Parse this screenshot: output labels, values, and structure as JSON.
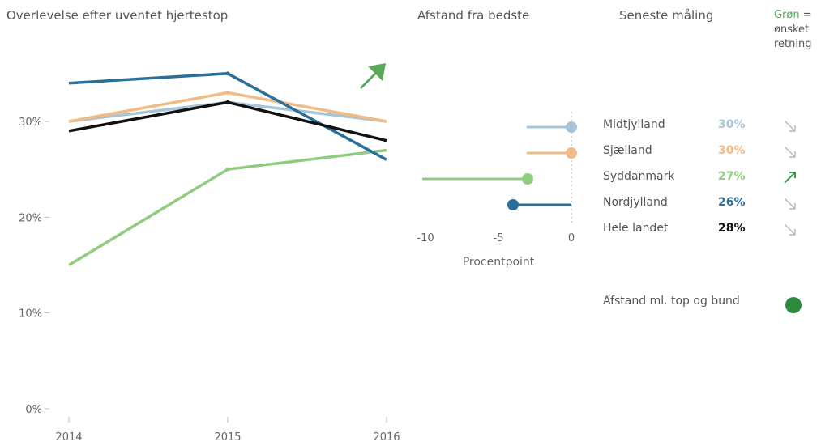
{
  "headers": {
    "left_title": "Overlevelse efter uventet hjertestop",
    "middle_title": "Afstand fra bedste",
    "right_title": "Seneste måling",
    "direction_word": "Grøn",
    "direction_rest": "=",
    "direction_line2": "ønsket",
    "direction_line3": "retning"
  },
  "footer": {
    "spread_label": "Afstand ml. top og bund",
    "spread_color": "#2e8b3e"
  },
  "trend_icon": "up-right-arrow",
  "trend_color": "#5ba85b",
  "chart_data": [
    {
      "type": "line",
      "title": "Overlevelse efter uventet hjertestop",
      "x": [
        "2014",
        "2015",
        "2016"
      ],
      "y_ticks": [
        "0%",
        "10%",
        "20%",
        "30%"
      ],
      "ylim": [
        0,
        40
      ],
      "grid": false,
      "series": [
        {
          "name": "Midtjylland",
          "color": "#a8c4d8",
          "values": [
            30,
            32,
            30
          ]
        },
        {
          "name": "Sjælland",
          "color": "#f3bb84",
          "values": [
            30,
            33,
            30
          ]
        },
        {
          "name": "Syddanmark",
          "color": "#8fcc80",
          "values": [
            15,
            25,
            27
          ]
        },
        {
          "name": "Nordjylland",
          "color": "#2a6f9a",
          "values": [
            34,
            35,
            26
          ]
        },
        {
          "name": "Hele landet",
          "color": "#111111",
          "values": [
            29,
            32,
            28
          ]
        }
      ]
    },
    {
      "type": "dot",
      "title": "Afstand fra bedste",
      "xlabel": "Procentpoint",
      "x_ticks": [
        -10,
        -5,
        0
      ],
      "xlim": [
        -10,
        0
      ],
      "series": [
        {
          "name": "Midtjylland",
          "color": "#a8c4d8",
          "value": 0
        },
        {
          "name": "Sjælland",
          "color": "#f3bb84",
          "value": 0
        },
        {
          "name": "Syddanmark",
          "color": "#8fcc80",
          "value": -3
        },
        {
          "name": "Nordjylland",
          "color": "#2a6f9a",
          "value": -4
        },
        {
          "name": "Hele landet",
          "color": "#111111",
          "value": null
        }
      ]
    },
    {
      "type": "table",
      "title": "Seneste måling",
      "rows": [
        {
          "name": "Midtjylland",
          "value": "30%",
          "color": "#a8c4d8",
          "trend": "down",
          "trend_color": "#bbbbbb"
        },
        {
          "name": "Sjælland",
          "value": "30%",
          "color": "#f3bb84",
          "trend": "down",
          "trend_color": "#bbbbbb"
        },
        {
          "name": "Syddanmark",
          "value": "27%",
          "color": "#8fcc80",
          "trend": "up",
          "trend_color": "#2e8b3e"
        },
        {
          "name": "Nordjylland",
          "value": "26%",
          "color": "#2a6f9a",
          "trend": "down",
          "trend_color": "#bbbbbb"
        },
        {
          "name": "Hele landet",
          "value": "28%",
          "color": "#111111",
          "trend": "down",
          "trend_color": "#bbbbbb"
        }
      ]
    }
  ]
}
